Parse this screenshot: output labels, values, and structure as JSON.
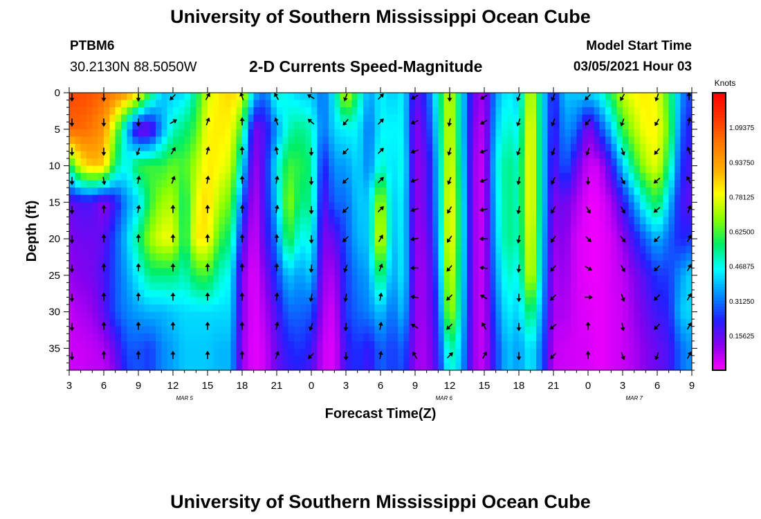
{
  "header": {
    "title": "University of Southern Mississippi Ocean Cube",
    "station_id": "PTBM6",
    "coordinates": "30.2130N 88.5050W",
    "subtitle": "2-D Currents Speed-Magnitude",
    "model_start_label": "Model Start Time",
    "model_start_value": "03/05/2021 Hour 03"
  },
  "footer": {
    "title": "University of Southern Mississippi Ocean Cube"
  },
  "chart_data": {
    "type": "heatmap",
    "title": "2-D Currents Speed-Magnitude",
    "xlabel": "Forecast Time(Z)",
    "ylabel": "Depth (ft)",
    "x_range_hours": [
      0,
      54
    ],
    "y_range_ft": [
      0,
      38
    ],
    "x_ticks": [
      {
        "h": 0,
        "label": "3"
      },
      {
        "h": 3,
        "label": "6"
      },
      {
        "h": 6,
        "label": "9"
      },
      {
        "h": 9,
        "label": "12"
      },
      {
        "h": 12,
        "label": "15"
      },
      {
        "h": 15,
        "label": "18"
      },
      {
        "h": 18,
        "label": "21"
      },
      {
        "h": 21,
        "label": "0"
      },
      {
        "h": 24,
        "label": "3"
      },
      {
        "h": 27,
        "label": "6"
      },
      {
        "h": 30,
        "label": "9"
      },
      {
        "h": 33,
        "label": "12"
      },
      {
        "h": 36,
        "label": "15"
      },
      {
        "h": 39,
        "label": "18"
      },
      {
        "h": 42,
        "label": "21"
      },
      {
        "h": 45,
        "label": "0"
      },
      {
        "h": 48,
        "label": "3"
      },
      {
        "h": 51,
        "label": "6"
      },
      {
        "h": 54,
        "label": "9"
      }
    ],
    "date_labels": [
      {
        "h": 10,
        "label": "MAR 5"
      },
      {
        "h": 32.5,
        "label": "MAR 6"
      },
      {
        "h": 49,
        "label": "MAR 7"
      }
    ],
    "y_ticks": [
      0,
      5,
      10,
      15,
      20,
      25,
      30,
      35
    ],
    "colorbar": {
      "unit": "Knots",
      "min": 0,
      "max": 1.25,
      "ticks": [
        "1.09375",
        "0.93750",
        "0.78125",
        "0.62500",
        "0.46875",
        "0.31250",
        "0.15625"
      ],
      "tick_values": [
        1.09375,
        0.9375,
        0.78125,
        0.625,
        0.46875,
        0.3125,
        0.15625
      ],
      "colors": [
        "#ff00ff",
        "#8800ee",
        "#2020ff",
        "#0090ff",
        "#00ffff",
        "#00ee66",
        "#88ff00",
        "#ffff00",
        "#ffaa00",
        "#ff7700",
        "#ff3300",
        "#ff0000"
      ]
    },
    "speed_columns_knots": {
      "depths_ft": [
        0,
        5,
        10,
        15,
        20,
        25,
        30,
        35,
        38
      ],
      "columns": [
        {
          "h": 0,
          "v": [
            1.1,
            1.05,
            0.55,
            0.15,
            0.12,
            0.1,
            0.06,
            0.05,
            0.05
          ]
        },
        {
          "h": 1,
          "v": [
            1.1,
            1.05,
            0.8,
            0.18,
            0.14,
            0.12,
            0.08,
            0.05,
            0.05
          ]
        },
        {
          "h": 2,
          "v": [
            1.08,
            1.02,
            0.88,
            0.18,
            0.14,
            0.13,
            0.1,
            0.06,
            0.06
          ]
        },
        {
          "h": 3,
          "v": [
            1.05,
            0.95,
            0.86,
            0.1,
            0.16,
            0.18,
            0.16,
            0.08,
            0.06
          ]
        },
        {
          "h": 4,
          "v": [
            1.0,
            0.7,
            0.55,
            0.2,
            0.28,
            0.28,
            0.28,
            0.15,
            0.12
          ]
        },
        {
          "h": 5,
          "v": [
            0.95,
            0.4,
            0.45,
            0.35,
            0.4,
            0.36,
            0.33,
            0.28,
            0.25
          ]
        },
        {
          "h": 6,
          "v": [
            0.85,
            0.12,
            0.6,
            0.42,
            0.55,
            0.45,
            0.36,
            0.28,
            0.28
          ]
        },
        {
          "h": 7,
          "v": [
            0.6,
            0.12,
            0.62,
            0.6,
            0.7,
            0.55,
            0.38,
            0.25,
            0.25
          ]
        },
        {
          "h": 8,
          "v": [
            0.4,
            0.35,
            0.6,
            0.7,
            0.78,
            0.55,
            0.38,
            0.33,
            0.33
          ]
        },
        {
          "h": 9,
          "v": [
            0.4,
            0.5,
            0.65,
            0.72,
            0.78,
            0.55,
            0.4,
            0.36,
            0.36
          ]
        },
        {
          "h": 10,
          "v": [
            0.42,
            0.55,
            0.62,
            0.55,
            0.55,
            0.5,
            0.42,
            0.4,
            0.4
          ]
        },
        {
          "h": 11,
          "v": [
            0.55,
            0.62,
            0.72,
            0.78,
            0.82,
            0.6,
            0.42,
            0.4,
            0.4
          ]
        },
        {
          "h": 12,
          "v": [
            0.75,
            0.8,
            0.82,
            0.85,
            0.82,
            0.62,
            0.42,
            0.4,
            0.4
          ]
        },
        {
          "h": 13,
          "v": [
            0.82,
            0.82,
            0.8,
            0.72,
            0.62,
            0.5,
            0.42,
            0.38,
            0.38
          ]
        },
        {
          "h": 14,
          "v": [
            0.85,
            0.8,
            0.75,
            0.65,
            0.55,
            0.45,
            0.42,
            0.38,
            0.38
          ]
        },
        {
          "h": 15,
          "v": [
            0.8,
            0.6,
            0.45,
            0.3,
            0.2,
            0.12,
            0.12,
            0.1,
            0.1
          ]
        },
        {
          "h": 16,
          "v": [
            0.4,
            0.12,
            0.08,
            0.05,
            0.03,
            0.02,
            0.02,
            0.02,
            0.02
          ]
        },
        {
          "h": 17,
          "v": [
            0.3,
            0.18,
            0.2,
            0.2,
            0.18,
            0.12,
            0.08,
            0.05,
            0.05
          ]
        },
        {
          "h": 18,
          "v": [
            0.5,
            0.35,
            0.45,
            0.4,
            0.32,
            0.25,
            0.18,
            0.15,
            0.15
          ]
        },
        {
          "h": 19,
          "v": [
            0.45,
            0.5,
            0.62,
            0.7,
            0.62,
            0.4,
            0.3,
            0.22,
            0.2
          ]
        },
        {
          "h": 20,
          "v": [
            0.4,
            0.55,
            0.6,
            0.55,
            0.45,
            0.35,
            0.3,
            0.25,
            0.22
          ]
        },
        {
          "h": 21,
          "v": [
            0.4,
            0.5,
            0.55,
            0.55,
            0.48,
            0.4,
            0.28,
            0.2,
            0.18
          ]
        },
        {
          "h": 22,
          "v": [
            0.3,
            0.3,
            0.2,
            0.15,
            0.12,
            0.1,
            0.08,
            0.05,
            0.05
          ]
        },
        {
          "h": 23,
          "v": [
            0.45,
            0.42,
            0.35,
            0.3,
            0.15,
            0.08,
            0.04,
            0.03,
            0.03
          ]
        },
        {
          "h": 24,
          "v": [
            0.78,
            0.45,
            0.35,
            0.3,
            0.28,
            0.25,
            0.25,
            0.2,
            0.2
          ]
        },
        {
          "h": 25,
          "v": [
            0.55,
            0.45,
            0.42,
            0.4,
            0.38,
            0.33,
            0.3,
            0.25,
            0.25
          ]
        },
        {
          "h": 26,
          "v": [
            0.35,
            0.3,
            0.32,
            0.4,
            0.4,
            0.36,
            0.33,
            0.2,
            0.18
          ]
        },
        {
          "h": 27,
          "v": [
            0.45,
            0.45,
            0.5,
            0.75,
            0.82,
            0.6,
            0.4,
            0.3,
            0.3
          ]
        },
        {
          "h": 28,
          "v": [
            0.4,
            0.45,
            0.42,
            0.4,
            0.38,
            0.35,
            0.3,
            0.25,
            0.25
          ]
        },
        {
          "h": 29,
          "v": [
            0.45,
            0.45,
            0.48,
            0.45,
            0.45,
            0.45,
            0.4,
            0.3,
            0.28
          ]
        },
        {
          "h": 30,
          "v": [
            0.15,
            0.1,
            0.1,
            0.1,
            0.1,
            0.1,
            0.1,
            0.1,
            0.1
          ]
        },
        {
          "h": 31,
          "v": [
            0.25,
            0.2,
            0.15,
            0.15,
            0.12,
            0.1,
            0.1,
            0.08,
            0.08
          ]
        },
        {
          "h": 32,
          "v": [
            0.5,
            0.45,
            0.4,
            0.38,
            0.35,
            0.3,
            0.25,
            0.22,
            0.2
          ]
        },
        {
          "h": 33,
          "v": [
            0.78,
            0.8,
            0.82,
            0.85,
            0.85,
            0.8,
            0.75,
            0.55,
            0.5
          ]
        },
        {
          "h": 34,
          "v": [
            0.45,
            0.45,
            0.48,
            0.5,
            0.5,
            0.48,
            0.45,
            0.4,
            0.38
          ]
        },
        {
          "h": 35,
          "v": [
            0.15,
            0.12,
            0.1,
            0.1,
            0.1,
            0.1,
            0.1,
            0.1,
            0.1
          ]
        },
        {
          "h": 36,
          "v": [
            0.08,
            0.06,
            0.05,
            0.05,
            0.05,
            0.05,
            0.05,
            0.05,
            0.05
          ]
        },
        {
          "h": 37,
          "v": [
            0.35,
            0.4,
            0.45,
            0.42,
            0.4,
            0.35,
            0.3,
            0.25,
            0.25
          ]
        },
        {
          "h": 38,
          "v": [
            0.45,
            0.5,
            0.55,
            0.55,
            0.55,
            0.5,
            0.45,
            0.4,
            0.4
          ]
        },
        {
          "h": 39,
          "v": [
            0.4,
            0.45,
            0.5,
            0.5,
            0.5,
            0.45,
            0.4,
            0.35,
            0.35
          ]
        },
        {
          "h": 40,
          "v": [
            0.8,
            0.85,
            0.85,
            0.85,
            0.82,
            0.8,
            0.6,
            0.45,
            0.45
          ]
        },
        {
          "h": 41,
          "v": [
            0.45,
            0.45,
            0.45,
            0.45,
            0.42,
            0.4,
            0.35,
            0.3,
            0.3
          ]
        },
        {
          "h": 42,
          "v": [
            0.2,
            0.18,
            0.15,
            0.12,
            0.1,
            0.08,
            0.08,
            0.06,
            0.05
          ]
        },
        {
          "h": 43,
          "v": [
            0.4,
            0.35,
            0.3,
            0.15,
            0.12,
            0.1,
            0.08,
            0.05,
            0.05
          ]
        },
        {
          "h": 44,
          "v": [
            0.4,
            0.3,
            0.15,
            0.08,
            0.04,
            0.04,
            0.04,
            0.04,
            0.04
          ]
        },
        {
          "h": 45,
          "v": [
            0.42,
            0.1,
            0.05,
            0.02,
            0.02,
            0.02,
            0.03,
            0.04,
            0.04
          ]
        },
        {
          "h": 46,
          "v": [
            0.45,
            0.25,
            0.05,
            0.02,
            0.02,
            0.02,
            0.02,
            0.02,
            0.02
          ]
        },
        {
          "h": 47,
          "v": [
            0.6,
            0.4,
            0.2,
            0.08,
            0.04,
            0.04,
            0.04,
            0.04,
            0.04
          ]
        },
        {
          "h": 48,
          "v": [
            0.75,
            0.6,
            0.4,
            0.2,
            0.1,
            0.06,
            0.05,
            0.05,
            0.05
          ]
        },
        {
          "h": 49,
          "v": [
            0.8,
            0.72,
            0.58,
            0.35,
            0.2,
            0.12,
            0.1,
            0.08,
            0.08
          ]
        },
        {
          "h": 50,
          "v": [
            0.82,
            0.8,
            0.72,
            0.5,
            0.3,
            0.18,
            0.15,
            0.12,
            0.12
          ]
        },
        {
          "h": 51,
          "v": [
            0.78,
            0.8,
            0.78,
            0.6,
            0.38,
            0.25,
            0.2,
            0.15,
            0.15
          ]
        },
        {
          "h": 52,
          "v": [
            0.6,
            0.65,
            0.55,
            0.4,
            0.3,
            0.25,
            0.22,
            0.18,
            0.18
          ]
        },
        {
          "h": 53,
          "v": [
            0.35,
            0.3,
            0.25,
            0.2,
            0.22,
            0.35,
            0.4,
            0.3,
            0.3
          ]
        },
        {
          "h": 54,
          "v": [
            0.25,
            0.2,
            0.18,
            0.15,
            0.25,
            0.42,
            0.42,
            0.35,
            0.35
          ]
        }
      ]
    },
    "direction_arrows": {
      "times_h": [
        0,
        3,
        6,
        9,
        12,
        15,
        18,
        21,
        24,
        27,
        30,
        33,
        36,
        39,
        42,
        45,
        48,
        51,
        54
      ],
      "depths_ft": [
        0,
        4,
        8,
        12,
        16,
        20,
        24,
        28,
        32,
        36
      ],
      "headings_deg": [
        [
          180,
          180,
          180,
          180,
          180,
          180,
          180,
          180,
          180,
          180
        ],
        [
          180,
          180,
          180,
          170,
          0,
          0,
          0,
          0,
          0,
          0
        ],
        [
          180,
          180,
          200,
          10,
          10,
          0,
          0,
          0,
          0,
          0
        ],
        [
          225,
          60,
          30,
          20,
          0,
          0,
          0,
          0,
          0,
          0
        ],
        [
          30,
          20,
          15,
          10,
          0,
          0,
          0,
          0,
          0,
          0
        ],
        [
          340,
          0,
          0,
          0,
          0,
          0,
          0,
          0,
          0,
          0
        ],
        [
          330,
          340,
          350,
          10,
          10,
          0,
          0,
          5,
          10,
          20
        ],
        [
          300,
          310,
          180,
          180,
          180,
          180,
          185,
          190,
          200,
          225
        ],
        [
          200,
          220,
          225,
          225,
          225,
          225,
          200,
          190,
          185,
          180
        ],
        [
          45,
          45,
          45,
          45,
          45,
          30,
          20,
          10,
          10,
          10
        ],
        [
          240,
          245,
          250,
          250,
          250,
          260,
          270,
          280,
          300,
          330
        ],
        [
          180,
          190,
          195,
          200,
          210,
          215,
          220,
          225,
          225,
          45
        ],
        [
          240,
          240,
          250,
          250,
          260,
          270,
          280,
          300,
          330,
          30
        ],
        [
          200,
          200,
          200,
          190,
          190,
          190,
          185,
          180,
          180,
          180
        ],
        [
          200,
          200,
          200,
          205,
          210,
          215,
          220,
          225,
          230,
          225
        ],
        [
          225,
          220,
          200,
          180,
          150,
          135,
          120,
          90,
          0,
          0
        ],
        [
          210,
          200,
          160,
          150,
          150,
          140,
          150,
          160,
          170,
          160
        ],
        [
          200,
          210,
          220,
          230,
          230,
          225,
          225,
          225,
          225,
          200
        ],
        [
          0,
          10,
          340,
          330,
          20,
          30,
          30,
          30,
          30,
          30
        ]
      ]
    }
  }
}
